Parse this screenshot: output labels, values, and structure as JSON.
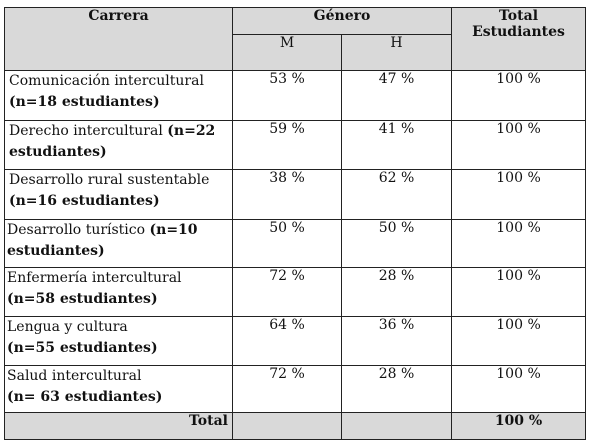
{
  "table": {
    "headers": {
      "career": "Carrera",
      "gender": "Género",
      "m": "M",
      "h": "H",
      "total": "Total Estudiantes"
    },
    "rows": [
      {
        "name": "Comunicación intercultural",
        "n": "(n=18 estudiantes)",
        "m": "53 %",
        "h": "47 %",
        "total": "100 %"
      },
      {
        "name": "Derecho intercultural",
        "n": "(n=22 estudiantes)",
        "m": "59 %",
        "h": "41 %",
        "total": "100 %"
      },
      {
        "name": "Desarrollo rural sustentable",
        "n": "(n=16 estudiantes)",
        "m": "38 %",
        "h": "62 %",
        "total": "100 %"
      },
      {
        "name": "Desarrollo turístico",
        "n": "(n=10 estudiantes)",
        "m": "50 %",
        "h": "50 %",
        "total": "100 %"
      },
      {
        "name": "Enfermería intercultural",
        "n": "(n=58 estudiantes)",
        "m": "72 %",
        "h": "28 %",
        "total": "100 %"
      },
      {
        "name": "Lengua y cultura",
        "n": "(n=55 estudiantes)",
        "m": "64 %",
        "h": "36 %",
        "total": "100 %"
      },
      {
        "name": "Salud intercultural",
        "n": "(n= 63 estudiantes)",
        "m": "72 %",
        "h": "28 %",
        "total": "100 %"
      }
    ],
    "footer": {
      "label": "Total",
      "value": "100 %"
    }
  }
}
